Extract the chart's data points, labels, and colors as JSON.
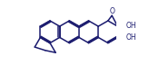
{
  "bg_color": "#ffffff",
  "line_color": "#1a1a6e",
  "lw": 1.1,
  "dbl_off": 0.016,
  "figsize": [
    1.64,
    0.83
  ],
  "dpi": 100,
  "xlim": [
    -0.05,
    1.05
  ],
  "ylim": [
    0.0,
    1.0
  ]
}
